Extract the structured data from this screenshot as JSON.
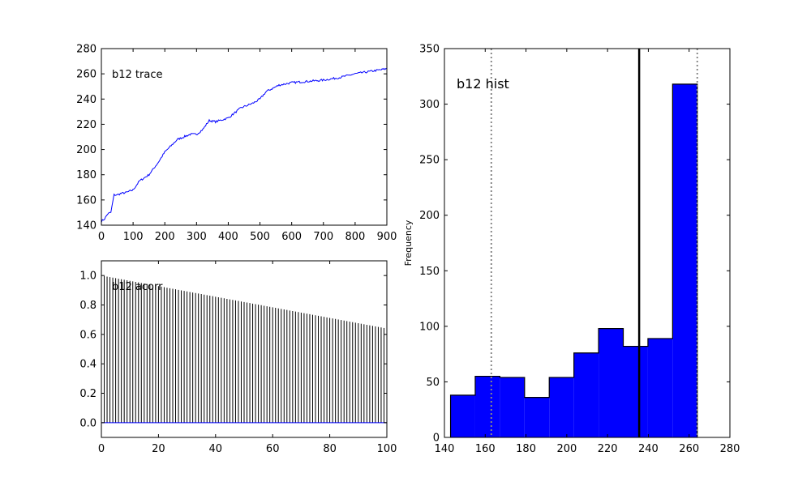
{
  "chart_data": [
    {
      "type": "line",
      "title": "b12 trace",
      "xlim": [
        0,
        900
      ],
      "ylim": [
        140,
        280
      ],
      "x_ticks": [
        0,
        100,
        200,
        300,
        400,
        500,
        600,
        700,
        800,
        900
      ],
      "y_ticks": [
        140,
        160,
        180,
        200,
        220,
        240,
        260,
        280
      ],
      "line_color": "#0000ff",
      "x": [
        0,
        10,
        20,
        30,
        40,
        50,
        60,
        80,
        100,
        120,
        150,
        180,
        200,
        220,
        240,
        260,
        280,
        300,
        320,
        340,
        360,
        400,
        440,
        480,
        500,
        520,
        560,
        600,
        650,
        700,
        750,
        800,
        850,
        900
      ],
      "y": [
        143,
        145,
        149,
        150,
        164,
        164,
        165,
        166,
        168,
        175,
        180,
        190,
        198,
        203,
        208,
        210,
        212,
        212,
        216,
        223,
        222,
        225,
        233,
        237,
        240,
        246,
        251,
        253,
        254,
        255,
        257,
        260,
        262,
        264
      ]
    },
    {
      "type": "bar",
      "title": "b12 acorr",
      "xlim": [
        0,
        100
      ],
      "ylim": [
        -0.1,
        1.1
      ],
      "x_ticks": [
        0,
        20,
        40,
        60,
        80,
        100
      ],
      "y_ticks": [
        0.0,
        0.2,
        0.4,
        0.6,
        0.8,
        1.0
      ],
      "lag_start": 0,
      "lag_end": 100,
      "acorr_start": 1.0,
      "acorr_end": 0.64,
      "zero_line_color": "#0000ff",
      "bar_color": "#000000"
    },
    {
      "type": "histogram",
      "title": "b12 hist",
      "ylabel": "Frequency",
      "xlim": [
        140,
        280
      ],
      "ylim": [
        0,
        350
      ],
      "x_ticks": [
        140,
        160,
        180,
        200,
        220,
        240,
        260,
        280
      ],
      "y_ticks": [
        0,
        50,
        100,
        150,
        200,
        250,
        300,
        350
      ],
      "bin_edges": [
        143,
        155.1,
        167.2,
        179.3,
        191.4,
        203.5,
        215.6,
        227.7,
        239.8,
        251.9,
        264
      ],
      "counts": [
        38,
        55,
        54,
        36,
        54,
        76,
        98,
        82,
        89,
        318
      ],
      "fill_color": "#0000ff",
      "mean_line": 235.5,
      "hpd_lines": [
        163,
        264
      ]
    }
  ]
}
